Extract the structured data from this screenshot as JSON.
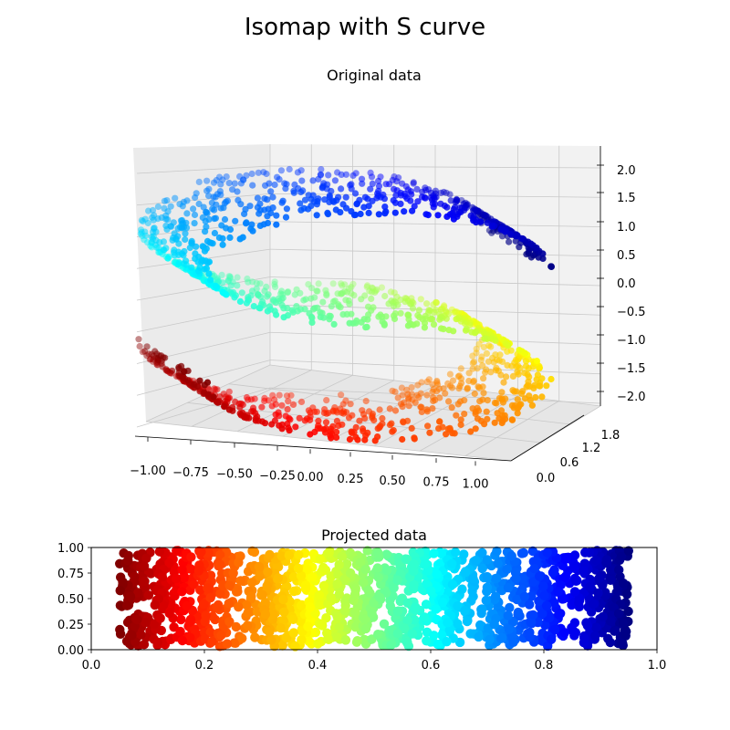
{
  "figure": {
    "title": "Isomap with S curve"
  },
  "chart_data": [
    {
      "type": "scatter",
      "projection": "3d",
      "title": "Original data",
      "description_of_data": "S-curve manifold, color mapped by position along the curve (jet colormap)",
      "xlim": [
        -1.1,
        1.1
      ],
      "ylim": [
        0,
        2
      ],
      "zlim": [
        -2.2,
        2.2
      ],
      "xticks": [
        "−1.00",
        "−0.75",
        "−0.50",
        "−0.25",
        "0.00",
        "0.25",
        "0.50",
        "0.75",
        "1.00"
      ],
      "yticks": [
        "0.0",
        "0.6",
        "1.2",
        "1.8"
      ],
      "zticks": [
        "2.0",
        "1.5",
        "1.0",
        "0.5",
        "0.0",
        "−0.5",
        "−1.0",
        "−1.5",
        "−2.0"
      ],
      "grid": true,
      "n_points": 1500,
      "colormap": "jet",
      "pane_color": "#f2f2f2",
      "grid_color": "#c8c8c8"
    },
    {
      "type": "scatter",
      "title": "Projected data",
      "xlim": [
        0,
        1
      ],
      "ylim": [
        0,
        1
      ],
      "xticks": [
        "0.0",
        "0.2",
        "0.4",
        "0.6",
        "0.8",
        "1.0"
      ],
      "yticks": [
        "0.00",
        "0.25",
        "0.50",
        "0.75",
        "1.00"
      ],
      "x_range_of_points": [
        0.05,
        0.95
      ],
      "y_range_of_points": [
        0.03,
        0.97
      ],
      "n_points": 1500,
      "colormap": "jet",
      "color_direction": "red at low x, blue at high x"
    }
  ]
}
